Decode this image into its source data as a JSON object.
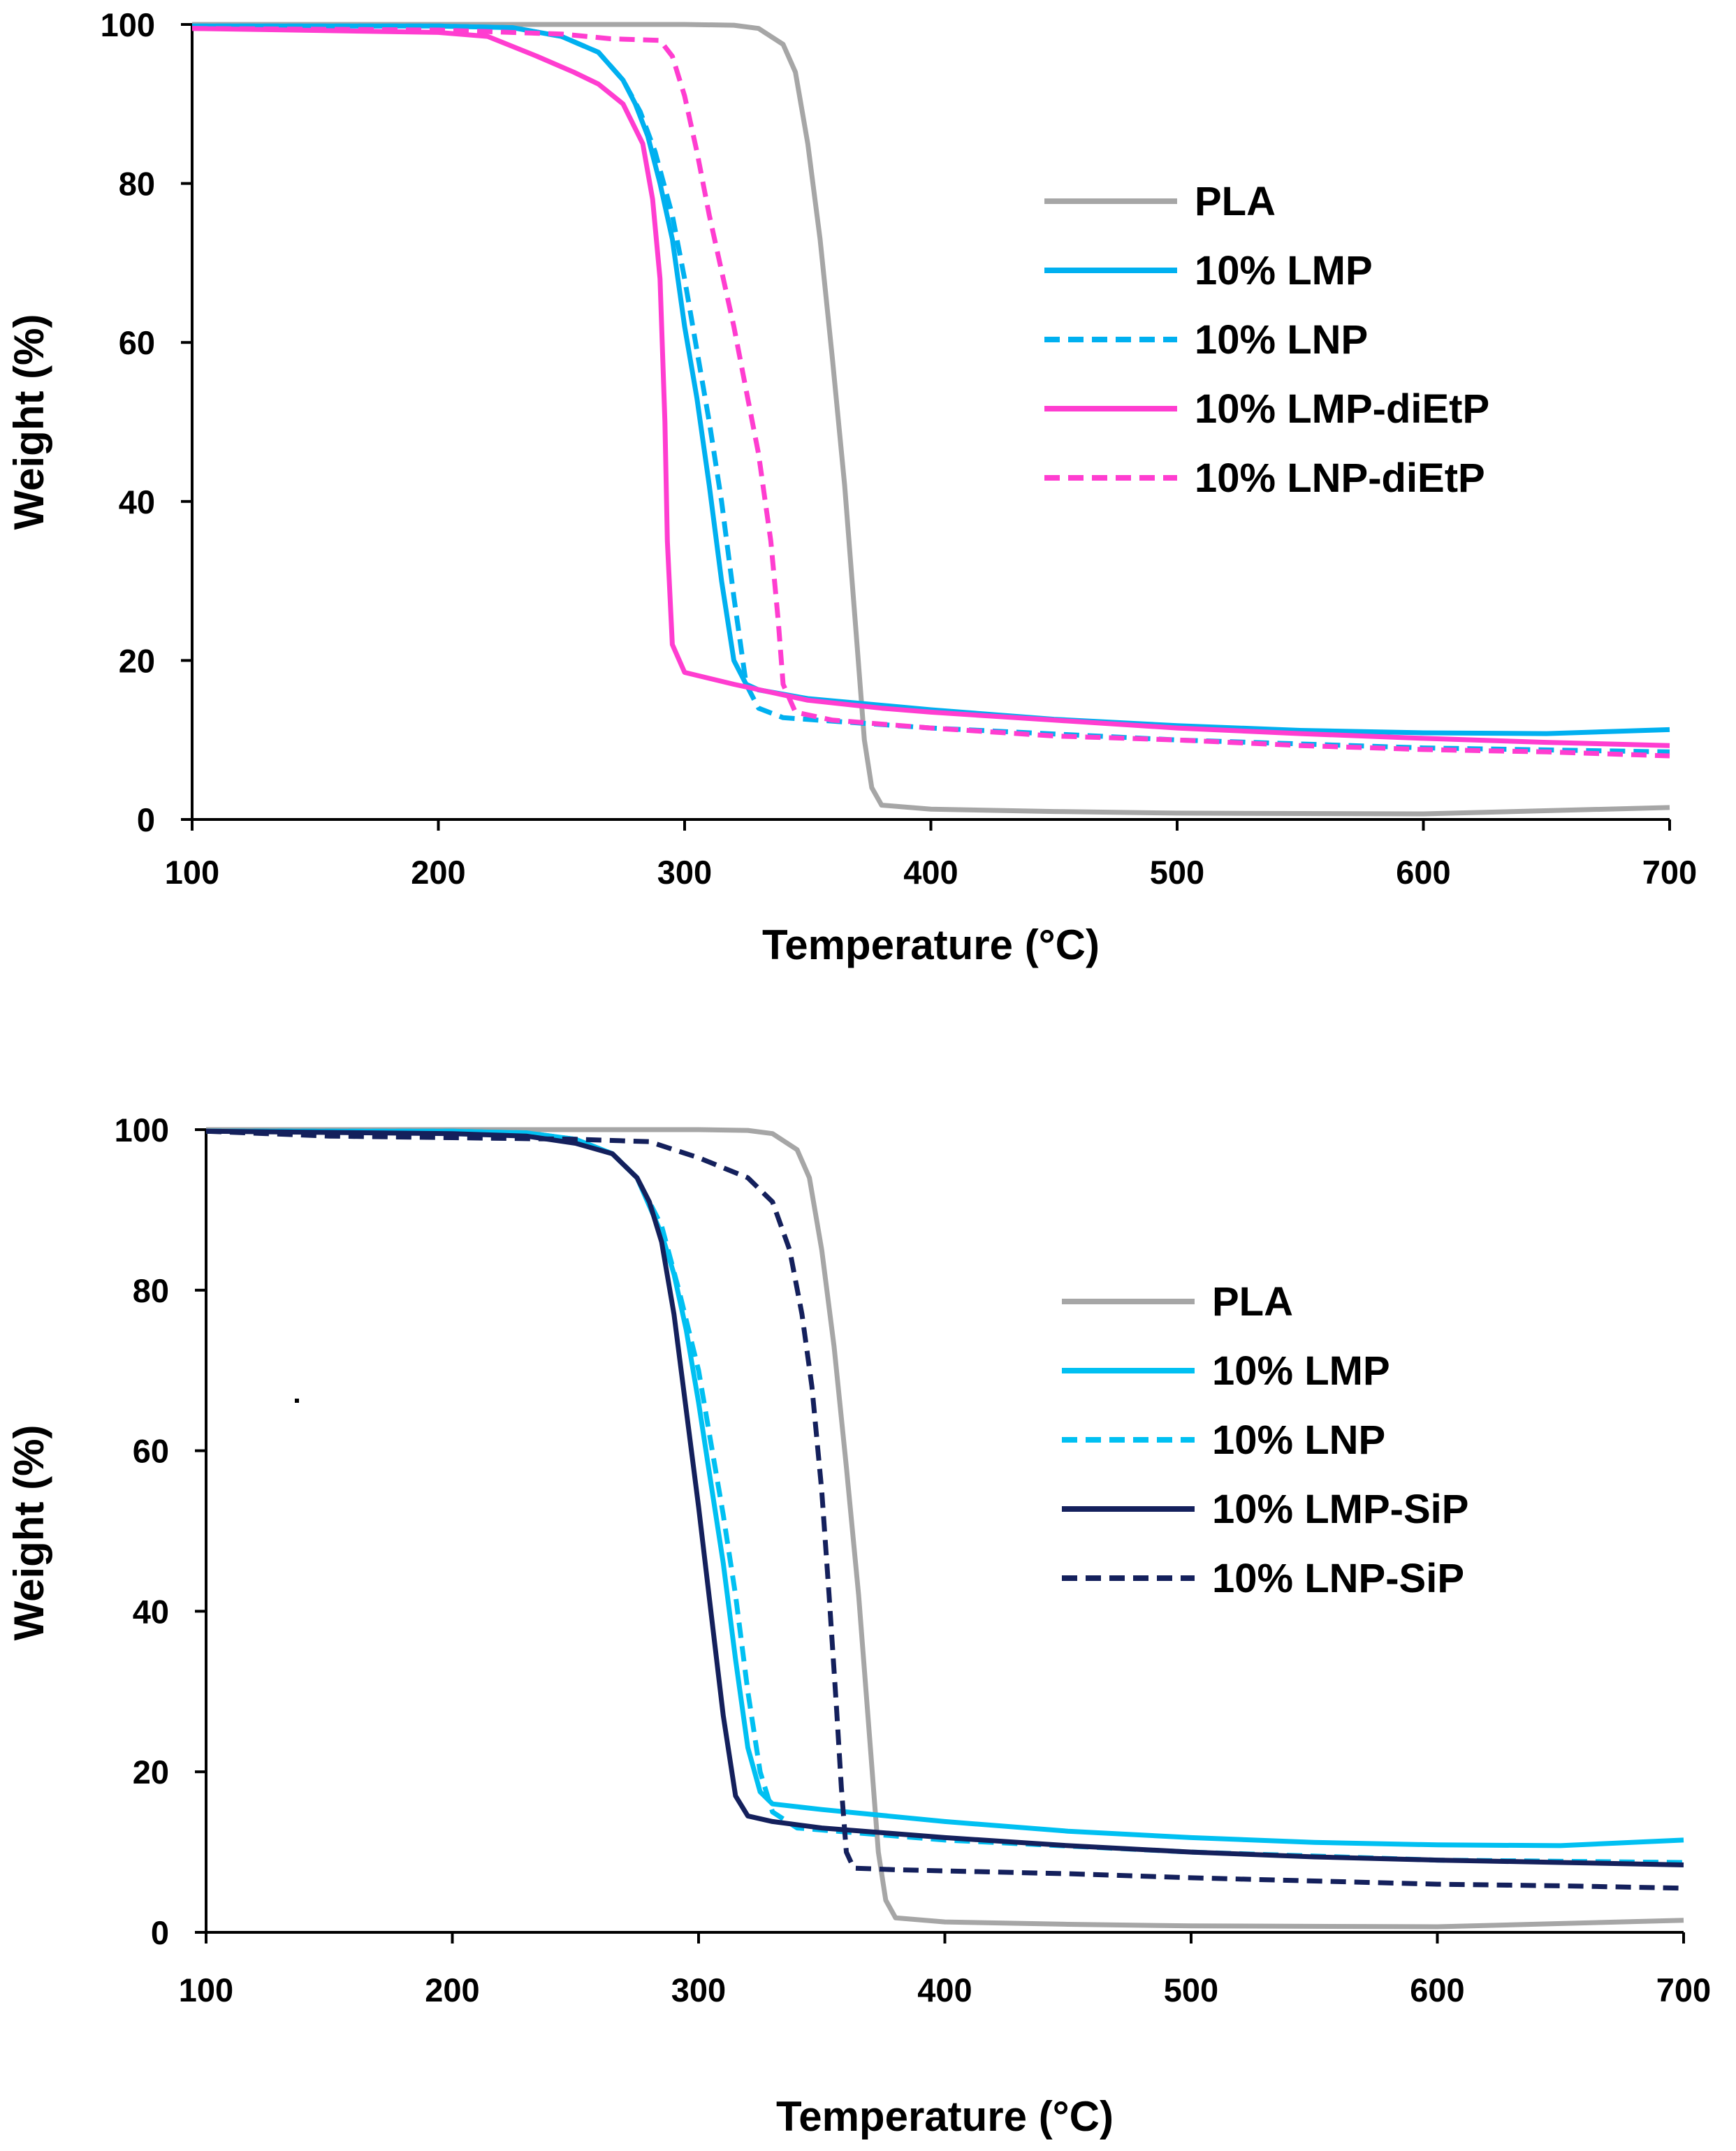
{
  "chart_data": [
    {
      "type": "line",
      "title": "",
      "xlabel": "Temperature (°C)",
      "ylabel": "Weight (%)",
      "xlim": [
        100,
        700
      ],
      "ylim": [
        0,
        100
      ],
      "xticks": [
        "100",
        "200",
        "300",
        "400",
        "500",
        "600",
        "700"
      ],
      "yticks": [
        "0",
        "20",
        "40",
        "60",
        "80",
        "100"
      ],
      "grid": false,
      "legend_position": "right",
      "series": [
        {
          "name": "PLA",
          "color": "#a6a6a6",
          "dash": "solid",
          "points": [
            [
              100,
              100
            ],
            [
              300,
              100
            ],
            [
              320,
              99.9
            ],
            [
              330,
              99.5
            ],
            [
              340,
              97.5
            ],
            [
              345,
              94
            ],
            [
              350,
              85
            ],
            [
              355,
              73
            ],
            [
              360,
              58
            ],
            [
              365,
              42
            ],
            [
              370,
              22
            ],
            [
              373,
              10
            ],
            [
              376,
              4
            ],
            [
              380,
              1.8
            ],
            [
              400,
              1.3
            ],
            [
              450,
              1.0
            ],
            [
              500,
              0.8
            ],
            [
              600,
              0.7
            ],
            [
              700,
              1.5
            ]
          ]
        },
        {
          "name": "10% LMP",
          "color": "#00b0f0",
          "dash": "solid",
          "points": [
            [
              100,
              99.8
            ],
            [
              200,
              99.8
            ],
            [
              230,
              99.6
            ],
            [
              250,
              98.5
            ],
            [
              265,
              96.5
            ],
            [
              275,
              93
            ],
            [
              280,
              90
            ],
            [
              285,
              86
            ],
            [
              290,
              80
            ],
            [
              295,
              73
            ],
            [
              300,
              62
            ],
            [
              305,
              53
            ],
            [
              310,
              42
            ],
            [
              315,
              30
            ],
            [
              320,
              20
            ],
            [
              325,
              17
            ],
            [
              330,
              16.3
            ],
            [
              350,
              15.2
            ],
            [
              400,
              13.8
            ],
            [
              450,
              12.6
            ],
            [
              500,
              11.8
            ],
            [
              550,
              11.2
            ],
            [
              600,
              10.9
            ],
            [
              650,
              10.8
            ],
            [
              700,
              11.3
            ]
          ]
        },
        {
          "name": "10% LNP",
          "color": "#00b0f0",
          "dash": "dashed",
          "points": [
            [
              100,
              99.8
            ],
            [
              200,
              99.8
            ],
            [
              230,
              99.6
            ],
            [
              250,
              98.5
            ],
            [
              265,
              96.5
            ],
            [
              275,
              93
            ],
            [
              282,
              89
            ],
            [
              288,
              84
            ],
            [
              295,
              76
            ],
            [
              300,
              68
            ],
            [
              305,
              59
            ],
            [
              310,
              50
            ],
            [
              315,
              40
            ],
            [
              320,
              28
            ],
            [
              325,
              17
            ],
            [
              330,
              14
            ],
            [
              340,
              12.8
            ],
            [
              400,
              11.5
            ],
            [
              500,
              10
            ],
            [
              600,
              9
            ],
            [
              700,
              8.5
            ]
          ]
        },
        {
          "name": "10% LMP-diEtP",
          "color": "#ff3dd0",
          "dash": "solid",
          "points": [
            [
              100,
              99.5
            ],
            [
              200,
              99
            ],
            [
              220,
              98.5
            ],
            [
              240,
              96
            ],
            [
              255,
              94
            ],
            [
              265,
              92.5
            ],
            [
              275,
              90
            ],
            [
              283,
              85
            ],
            [
              287,
              78
            ],
            [
              290,
              68
            ],
            [
              292,
              50
            ],
            [
              293,
              35
            ],
            [
              295,
              22
            ],
            [
              300,
              18.5
            ],
            [
              320,
              17
            ],
            [
              350,
              15
            ],
            [
              380,
              14
            ],
            [
              400,
              13.5
            ],
            [
              450,
              12.5
            ],
            [
              500,
              11.5
            ],
            [
              550,
              10.8
            ],
            [
              600,
              10.2
            ],
            [
              650,
              9.7
            ],
            [
              700,
              9.3
            ]
          ]
        },
        {
          "name": "10% LNP-diEtP",
          "color": "#ff3dd0",
          "dash": "dashed",
          "points": [
            [
              100,
              99.5
            ],
            [
              200,
              99.3
            ],
            [
              250,
              98.8
            ],
            [
              270,
              98.2
            ],
            [
              290,
              98
            ],
            [
              295,
              96
            ],
            [
              300,
              91
            ],
            [
              305,
              84
            ],
            [
              310,
              76
            ],
            [
              315,
              69
            ],
            [
              320,
              62
            ],
            [
              325,
              54
            ],
            [
              330,
              46
            ],
            [
              335,
              35
            ],
            [
              338,
              25
            ],
            [
              340,
              17
            ],
            [
              345,
              13.5
            ],
            [
              360,
              12.5
            ],
            [
              400,
              11.5
            ],
            [
              450,
              10.5
            ],
            [
              500,
              10
            ],
            [
              550,
              9.3
            ],
            [
              600,
              8.8
            ],
            [
              650,
              8.5
            ],
            [
              700,
              8
            ]
          ]
        }
      ]
    },
    {
      "type": "line",
      "title": "",
      "xlabel": "Temperature (°C)",
      "ylabel": "Weight (%)",
      "xlim": [
        100,
        700
      ],
      "ylim": [
        0,
        100
      ],
      "xticks": [
        "100",
        "200",
        "300",
        "400",
        "500",
        "600",
        "700"
      ],
      "yticks": [
        "0",
        "20",
        "40",
        "60",
        "80",
        "100"
      ],
      "grid": false,
      "legend_position": "right",
      "series": [
        {
          "name": "PLA",
          "color": "#a6a6a6",
          "dash": "solid",
          "points": [
            [
              100,
              100
            ],
            [
              300,
              100
            ],
            [
              320,
              99.9
            ],
            [
              330,
              99.5
            ],
            [
              340,
              97.5
            ],
            [
              345,
              94
            ],
            [
              350,
              85
            ],
            [
              355,
              73
            ],
            [
              360,
              58
            ],
            [
              365,
              42
            ],
            [
              370,
              22
            ],
            [
              373,
              10
            ],
            [
              376,
              4
            ],
            [
              380,
              1.8
            ],
            [
              400,
              1.3
            ],
            [
              450,
              1.0
            ],
            [
              500,
              0.8
            ],
            [
              600,
              0.7
            ],
            [
              700,
              1.5
            ]
          ]
        },
        {
          "name": "10% LMP",
          "color": "#00c0f2",
          "dash": "solid",
          "points": [
            [
              100,
              99.8
            ],
            [
              200,
              99.8
            ],
            [
              230,
              99.6
            ],
            [
              250,
              98.8
            ],
            [
              265,
              97
            ],
            [
              275,
              94
            ],
            [
              285,
              87
            ],
            [
              290,
              82
            ],
            [
              295,
              75
            ],
            [
              300,
              66
            ],
            [
              305,
              56
            ],
            [
              310,
              46
            ],
            [
              315,
              34
            ],
            [
              320,
              23
            ],
            [
              325,
              17.5
            ],
            [
              330,
              16
            ],
            [
              350,
              15.3
            ],
            [
              400,
              13.8
            ],
            [
              450,
              12.6
            ],
            [
              500,
              11.8
            ],
            [
              550,
              11.2
            ],
            [
              600,
              10.9
            ],
            [
              650,
              10.8
            ],
            [
              700,
              11.5
            ]
          ]
        },
        {
          "name": "10% LNP",
          "color": "#00c0f2",
          "dash": "dashed",
          "points": [
            [
              100,
              99.8
            ],
            [
              200,
              99.8
            ],
            [
              230,
              99.6
            ],
            [
              250,
              98.8
            ],
            [
              265,
              97
            ],
            [
              275,
              94
            ],
            [
              285,
              88
            ],
            [
              292,
              80
            ],
            [
              300,
              70
            ],
            [
              305,
              61
            ],
            [
              310,
              52
            ],
            [
              315,
              42
            ],
            [
              320,
              30
            ],
            [
              325,
              20
            ],
            [
              330,
              15
            ],
            [
              340,
              13
            ],
            [
              400,
              11.5
            ],
            [
              500,
              10
            ],
            [
              600,
              9
            ],
            [
              700,
              8.7
            ]
          ]
        },
        {
          "name": "10% LMP-SiP",
          "color": "#14205c",
          "dash": "solid",
          "points": [
            [
              100,
              99.8
            ],
            [
              200,
              99.5
            ],
            [
              230,
              99.2
            ],
            [
              250,
              98.3
            ],
            [
              265,
              97
            ],
            [
              275,
              94
            ],
            [
              280,
              91
            ],
            [
              285,
              86
            ],
            [
              290,
              77
            ],
            [
              295,
              65
            ],
            [
              300,
              53
            ],
            [
              305,
              40
            ],
            [
              310,
              27
            ],
            [
              315,
              17
            ],
            [
              320,
              14.5
            ],
            [
              330,
              13.8
            ],
            [
              350,
              13
            ],
            [
              400,
              11.8
            ],
            [
              450,
              10.8
            ],
            [
              500,
              10
            ],
            [
              550,
              9.4
            ],
            [
              600,
              9
            ],
            [
              650,
              8.7
            ],
            [
              700,
              8.4
            ]
          ]
        },
        {
          "name": "10% LNP-SiP",
          "color": "#14205c",
          "dash": "dashed",
          "points": [
            [
              100,
              99.8
            ],
            [
              150,
              99.2
            ],
            [
              200,
              99
            ],
            [
              250,
              98.8
            ],
            [
              280,
              98.5
            ],
            [
              300,
              96.5
            ],
            [
              320,
              94
            ],
            [
              330,
              91
            ],
            [
              337,
              85
            ],
            [
              342,
              77
            ],
            [
              346,
              68
            ],
            [
              350,
              55
            ],
            [
              353,
              42
            ],
            [
              356,
              28
            ],
            [
              358,
              18
            ],
            [
              360,
              10
            ],
            [
              363,
              8
            ],
            [
              380,
              7.8
            ],
            [
              450,
              7.3
            ],
            [
              500,
              6.8
            ],
            [
              550,
              6.4
            ],
            [
              600,
              6
            ],
            [
              650,
              5.8
            ],
            [
              700,
              5.5
            ]
          ]
        }
      ]
    }
  ]
}
